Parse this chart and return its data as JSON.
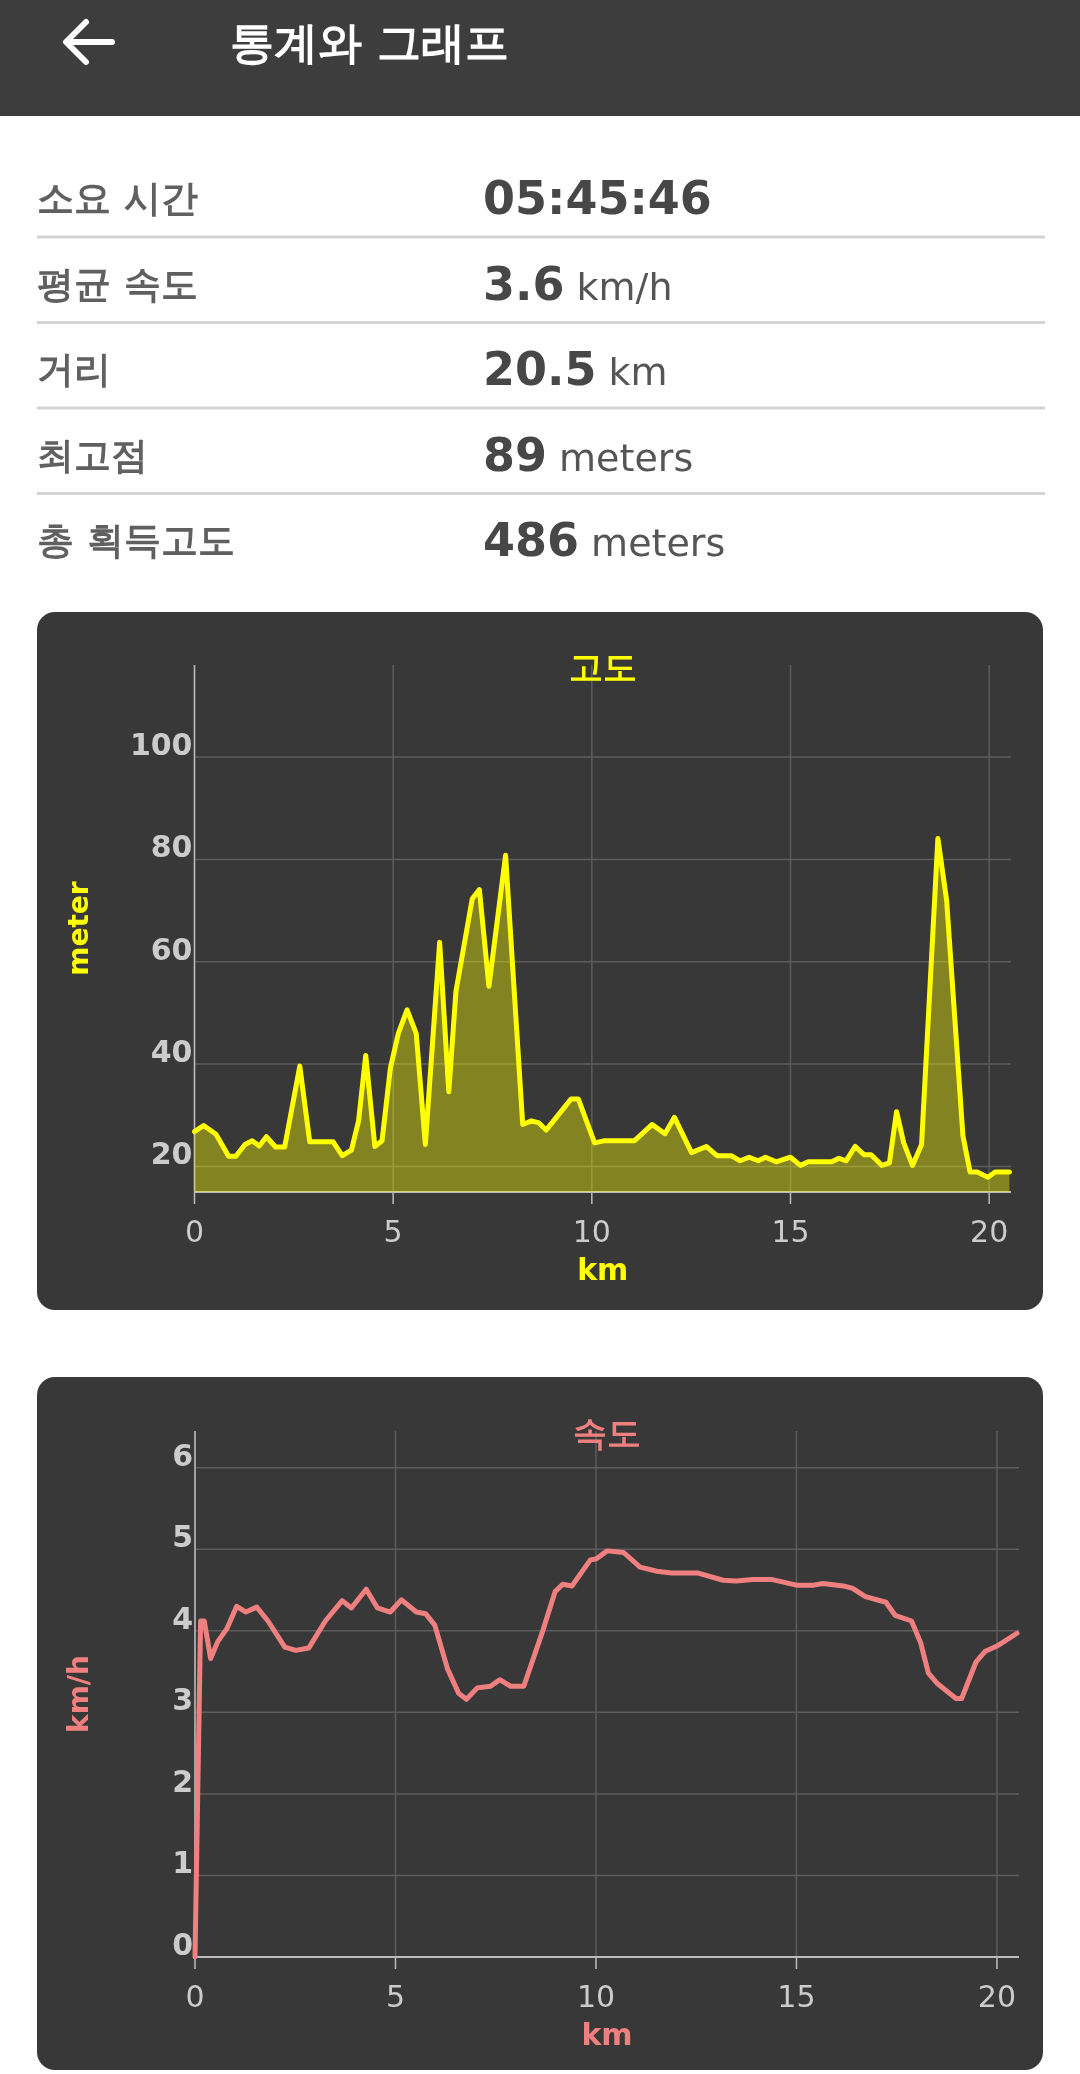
{
  "chart_data": [
    {
      "type": "other",
      "title": "통계와 그래프",
      "annotations": [
        "소요 시간",
        "05:45:46",
        "평균 속도",
        "3.6 km/h",
        "거리",
        "20.5 km",
        "최고점",
        "89 meters",
        "총 획득고도",
        "486 meters"
      ]
    },
    {
      "type": "area",
      "title": "고도",
      "xlabel": "km",
      "ylabel": "meter",
      "xlim": [
        0,
        20.55
      ],
      "ylim": [
        15,
        118
      ],
      "xticks": [
        0,
        5,
        10,
        15,
        20
      ],
      "yticks": [
        20,
        40,
        60,
        80,
        100
      ],
      "grid": true,
      "x": [
        0,
        0.23,
        0.54,
        0.86,
        1.04,
        1.27,
        1.45,
        1.63,
        1.81,
        2.04,
        2.27,
        2.65,
        2.9,
        3.49,
        3.72,
        3.95,
        4.13,
        4.31,
        4.54,
        4.72,
        4.93,
        5.13,
        5.35,
        5.58,
        5.81,
        6.17,
        6.4,
        6.58,
        6.99,
        7.17,
        7.41,
        7.83,
        8.26,
        8.48,
        8.67,
        8.85,
        9.48,
        9.66,
        10.07,
        10.3,
        11.07,
        11.52,
        11.84,
        12.08,
        12.51,
        12.88,
        13.15,
        13.51,
        13.73,
        13.96,
        14.19,
        14.37,
        14.64,
        15.0,
        15.25,
        15.45,
        16.04,
        16.22,
        16.4,
        16.63,
        16.85,
        17.03,
        17.3,
        17.49,
        17.67,
        17.85,
        18.07,
        18.3,
        18.71,
        18.93,
        19.34,
        19.52,
        19.7,
        19.97,
        20.15,
        20.51
      ],
      "series": [
        {
          "color": "#ffff00",
          "values": [
            26.8,
            28,
            26.3,
            22,
            22,
            24.3,
            25,
            24,
            25.8,
            23.8,
            23.8,
            39.6,
            24.8,
            24.8,
            22.1,
            23.2,
            28.9,
            41.7,
            23.9,
            25,
            39.2,
            46,
            50.6,
            46,
            24.3,
            63.8,
            34.6,
            54.2,
            72.3,
            74.1,
            55.2,
            80.8,
            28.2,
            28.9,
            28.5,
            27.1,
            33.2,
            33.2,
            24.6,
            25,
            25,
            28.2,
            26.4,
            29.6,
            22.7,
            23.9,
            22.1,
            22.1,
            21.1,
            21.8,
            21.1,
            21.8,
            20.9,
            21.8,
            20.2,
            20.9,
            20.9,
            21.6,
            21.1,
            23.9,
            22.3,
            22.3,
            20.2,
            20.7,
            30.7,
            24.6,
            20.2,
            24.3,
            84.1,
            72,
            26,
            18.9,
            18.9,
            17.9,
            18.9,
            18.9
          ]
        }
      ]
    },
    {
      "type": "line",
      "title": "속도",
      "xlabel": "km",
      "ylabel": "km/h",
      "xlim": [
        0,
        20.55
      ],
      "ylim": [
        0,
        6.45
      ],
      "xticks": [
        0,
        5,
        10,
        15,
        20
      ],
      "yticks": [
        0,
        1,
        2,
        3,
        4,
        5,
        6
      ],
      "grid": true,
      "x": [
        0,
        0.14,
        0.23,
        0.39,
        0.57,
        0.8,
        1.04,
        1.27,
        1.54,
        1.82,
        2.24,
        2.51,
        2.84,
        3.25,
        3.67,
        3.9,
        4.27,
        4.55,
        4.87,
        5.15,
        5.52,
        5.75,
        5.98,
        6.3,
        6.58,
        6.77,
        7.04,
        7.37,
        7.6,
        7.87,
        8.2,
        8.66,
        8.98,
        9.17,
        9.4,
        9.86,
        10.0,
        10.28,
        10.69,
        11.1,
        11.52,
        11.88,
        12.53,
        13.17,
        13.5,
        13.91,
        14.37,
        15.0,
        15.43,
        15.66,
        16.17,
        16.4,
        16.72,
        17.23,
        17.46,
        17.87,
        18.1,
        18.29,
        18.52,
        18.98,
        19.12,
        19.48,
        19.71,
        19.99,
        20.5
      ],
      "series": [
        {
          "color": "#f08080",
          "values": [
            0,
            4.12,
            4.12,
            3.66,
            3.87,
            4.03,
            4.3,
            4.23,
            4.29,
            4.12,
            3.8,
            3.76,
            3.79,
            4.12,
            4.37,
            4.28,
            4.51,
            4.28,
            4.23,
            4.38,
            4.23,
            4.21,
            4.07,
            3.53,
            3.23,
            3.16,
            3.3,
            3.32,
            3.4,
            3.32,
            3.32,
            3.98,
            4.48,
            4.57,
            4.55,
            4.87,
            4.88,
            4.98,
            4.96,
            4.78,
            4.73,
            4.71,
            4.71,
            4.62,
            4.61,
            4.63,
            4.63,
            4.56,
            4.56,
            4.58,
            4.55,
            4.52,
            4.42,
            4.35,
            4.19,
            4.12,
            3.85,
            3.48,
            3.35,
            3.17,
            3.17,
            3.62,
            3.75,
            3.81,
            3.97
          ]
        }
      ]
    }
  ]
}
